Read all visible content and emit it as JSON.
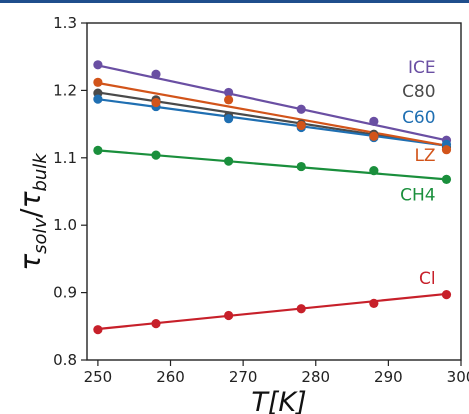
{
  "chart_data": {
    "type": "scatter",
    "title": "",
    "xlabel": "T[K]",
    "ylabel": "τsolv/τbulk",
    "ylabel_parts": {
      "symbol": "τ",
      "sub1": "solv",
      "slash": "/",
      "symbol2": "τ",
      "sub2": "bulk"
    },
    "xlim": [
      248.5,
      300
    ],
    "ylim": [
      0.8,
      1.3
    ],
    "xticks": [
      250,
      260,
      270,
      280,
      290,
      300
    ],
    "yticks": [
      0.8,
      0.9,
      1.0,
      1.1,
      1.2,
      1.3
    ],
    "xtick_labels": [
      "250",
      "260",
      "270",
      "280",
      "290",
      "300"
    ],
    "ytick_labels": [
      "0.8",
      "0.9",
      "1.0",
      "1.1",
      "1.2",
      "1.3"
    ],
    "grid": false,
    "legend": "inline labels on the right",
    "series": [
      {
        "name": "ICE",
        "color": "#6a4fa3",
        "x": [
          250,
          258,
          268,
          278,
          288,
          298
        ],
        "y": [
          1.238,
          1.224,
          1.197,
          1.172,
          1.154,
          1.126
        ],
        "fit": [
          [
            250,
            1.237
          ],
          [
            298,
            1.126
          ]
        ]
      },
      {
        "name": "C80",
        "color": "#4a4a4a",
        "x": [
          250,
          258,
          268,
          278,
          288,
          298
        ],
        "y": [
          1.196,
          1.186,
          1.162,
          1.15,
          1.135,
          1.116
        ],
        "fit": [
          [
            250,
            1.197
          ],
          [
            298,
            1.118
          ]
        ]
      },
      {
        "name": "C60",
        "color": "#1f6fb2",
        "x": [
          250,
          258,
          268,
          278,
          288,
          298
        ],
        "y": [
          1.187,
          1.176,
          1.158,
          1.145,
          1.13,
          1.12
        ],
        "fit": [
          [
            250,
            1.187
          ],
          [
            298,
            1.118
          ]
        ]
      },
      {
        "name": "LZ",
        "color": "#d2541a",
        "x": [
          250,
          258,
          268,
          278,
          288,
          298
        ],
        "y": [
          1.212,
          1.182,
          1.186,
          1.148,
          1.132,
          1.112
        ],
        "fit": [
          [
            250,
            1.211
          ],
          [
            298,
            1.118
          ]
        ]
      },
      {
        "name": "CH4",
        "color": "#1a8f3c",
        "x": [
          250,
          258,
          268,
          278,
          288,
          298
        ],
        "y": [
          1.111,
          1.104,
          1.095,
          1.087,
          1.081,
          1.068
        ],
        "fit": [
          [
            250,
            1.111
          ],
          [
            298,
            1.068
          ]
        ]
      },
      {
        "name": "Cl",
        "color": "#c7202a",
        "x": [
          250,
          258,
          268,
          278,
          288,
          298
        ],
        "y": [
          0.845,
          0.854,
          0.866,
          0.876,
          0.884,
          0.897
        ],
        "fit": [
          [
            250,
            0.846
          ],
          [
            298,
            0.898
          ]
        ]
      }
    ],
    "series_labels": [
      {
        "text": "ICE",
        "color": "#6a4fa3",
        "at": [
          296.5,
          1.226
        ]
      },
      {
        "text": "C80",
        "color": "#4a4a4a",
        "at": [
          296.5,
          1.19
        ]
      },
      {
        "text": "C60",
        "color": "#1f6fb2",
        "at": [
          296.5,
          1.152
        ]
      },
      {
        "text": "LZ",
        "color": "#d2541a",
        "at": [
          296.5,
          1.095
        ]
      },
      {
        "text": "CH4",
        "color": "#1a8f3c",
        "at": [
          296.5,
          1.037
        ]
      },
      {
        "text": "Cl",
        "color": "#c7202a",
        "at": [
          296.5,
          0.913
        ]
      }
    ]
  }
}
